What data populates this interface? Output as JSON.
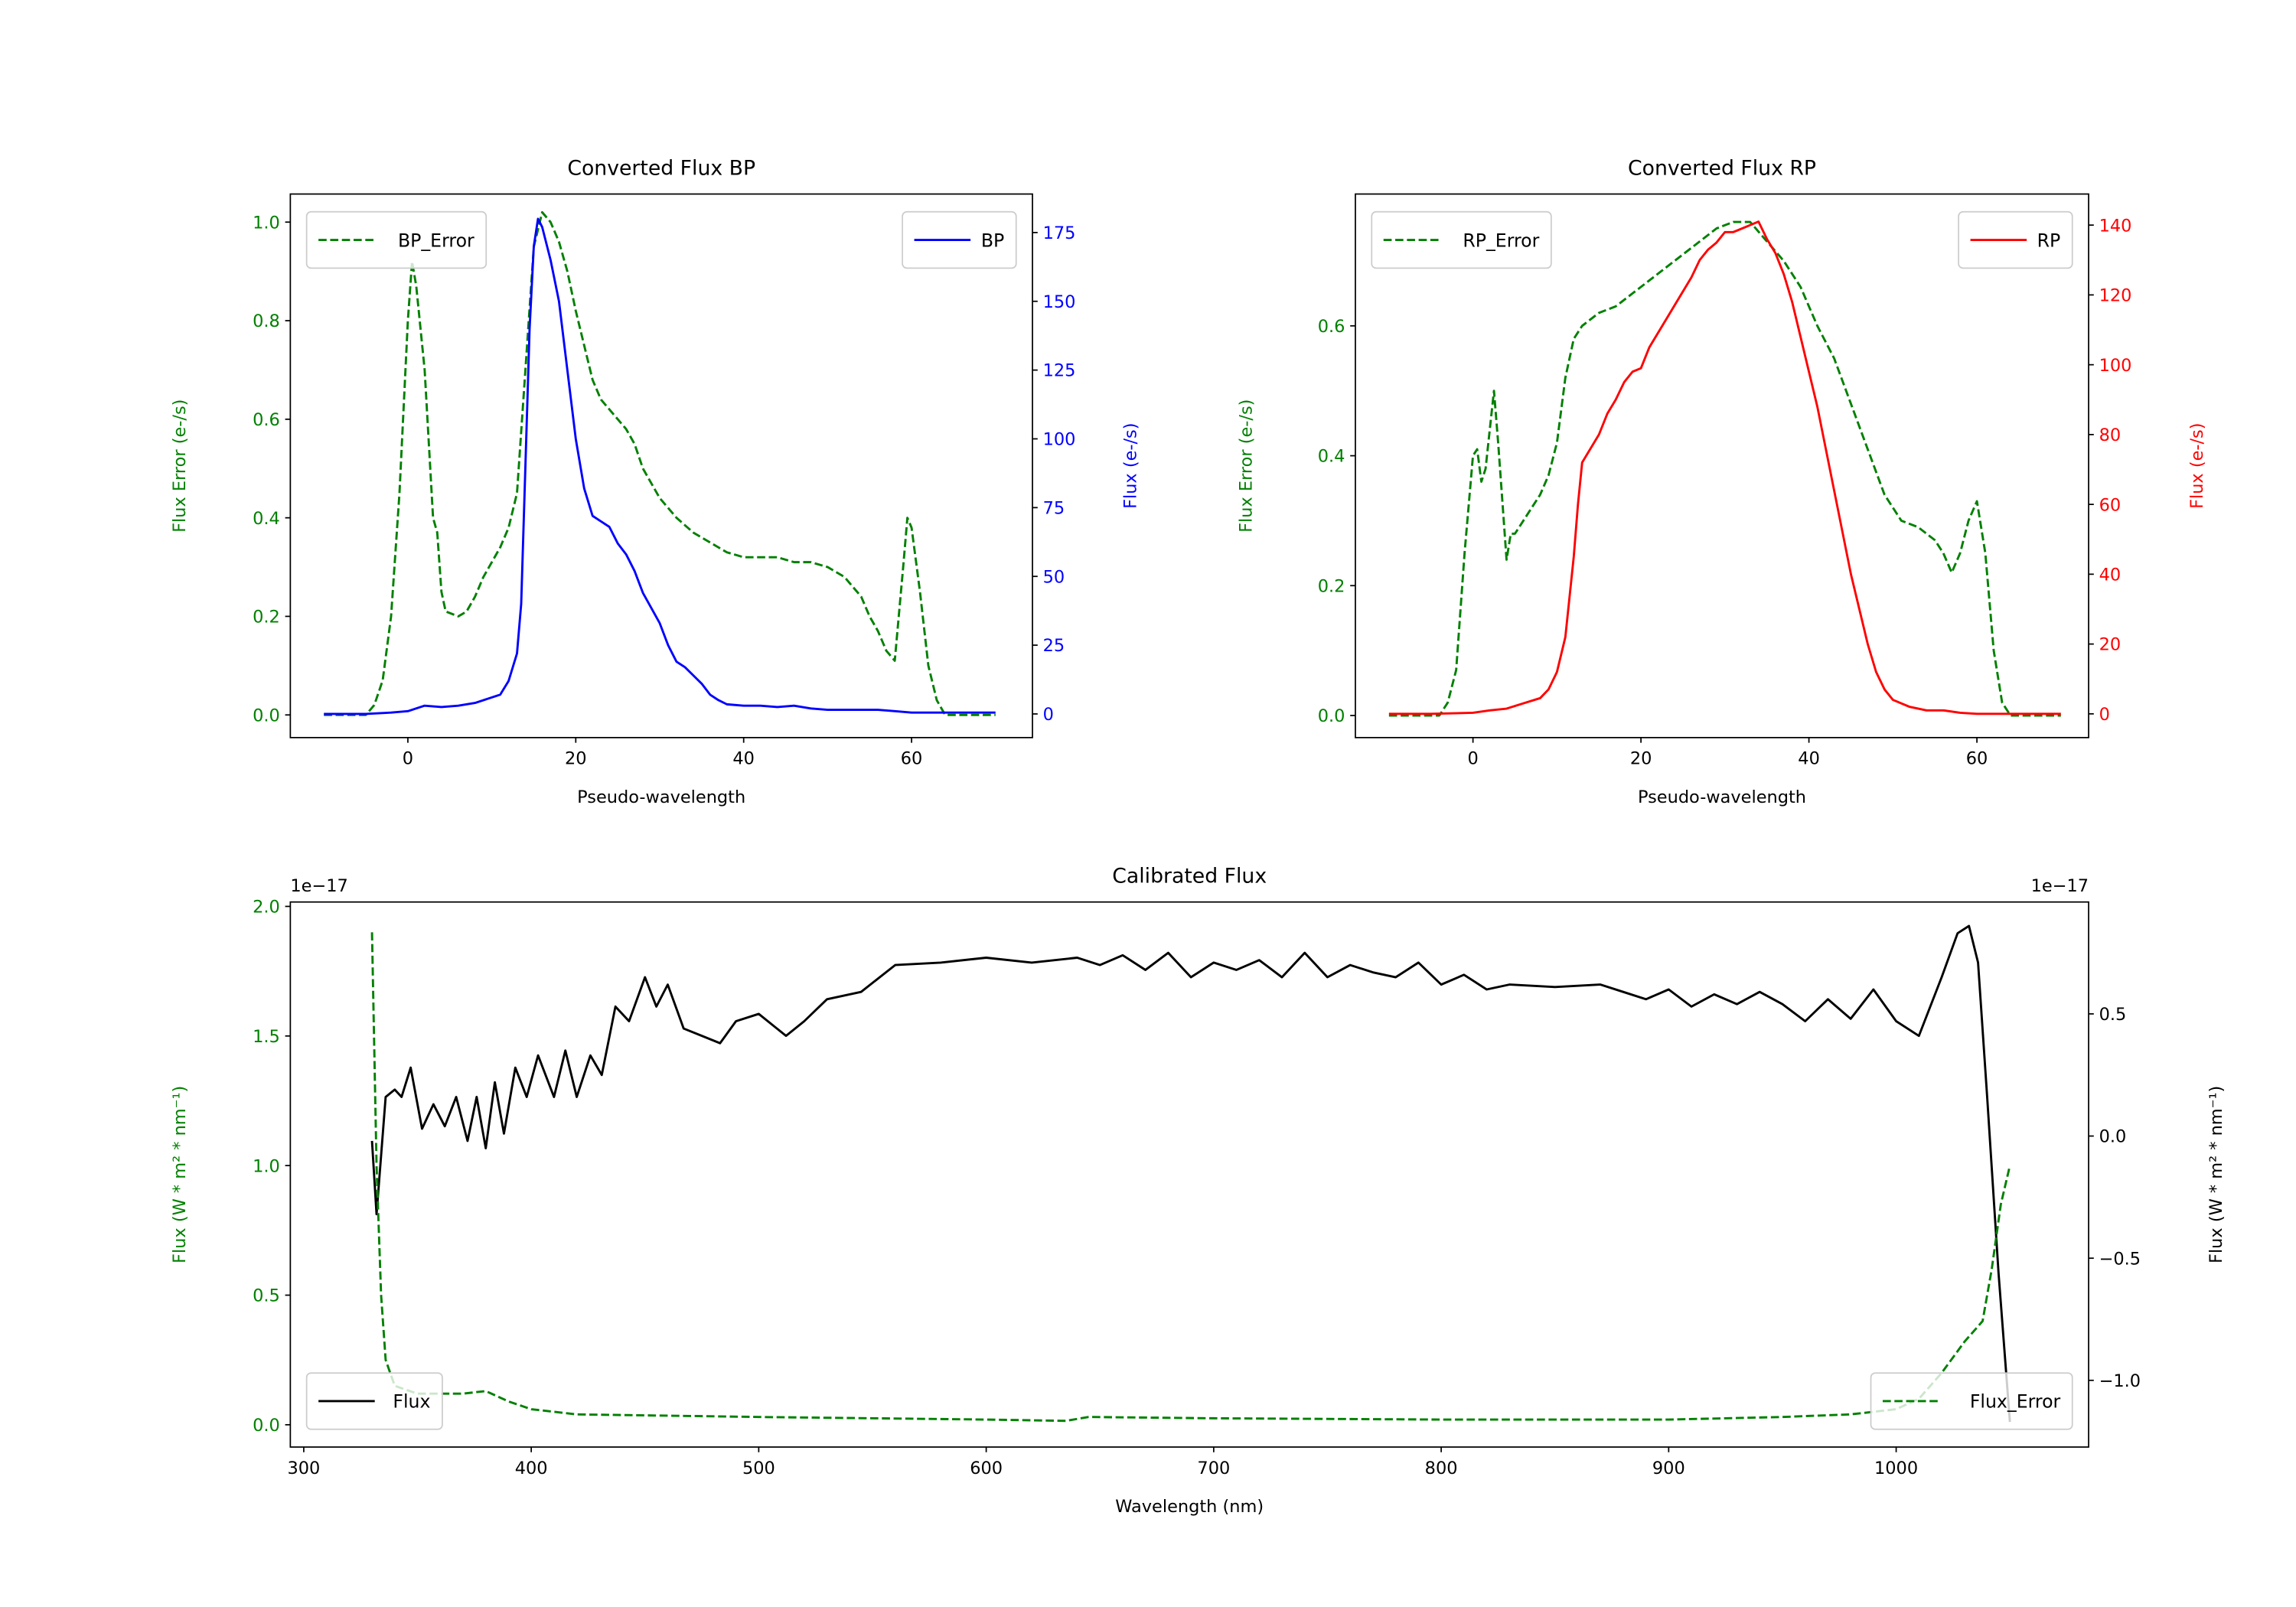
{
  "chart_data": [
    {
      "id": "bp",
      "type": "line",
      "title": "Converted Flux BP",
      "xlabel": "Pseudo-wavelength",
      "ylabel_left": "Flux Error (e-/s)",
      "ylabel_right": "Flux (e-/s)",
      "xlim": [
        -14,
        74.4
      ],
      "ylim_left": [
        -0.046,
        1.057
      ],
      "ylim_right": [
        -8.6,
        189
      ],
      "xticks": [
        {
          "v": 0,
          "label": "0"
        },
        {
          "v": 20,
          "label": "20"
        },
        {
          "v": 40,
          "label": "40"
        },
        {
          "v": 60,
          "label": "60"
        }
      ],
      "yticks_left": [
        {
          "v": 0,
          "label": "0.0"
        },
        {
          "v": 0.2,
          "label": "0.2"
        },
        {
          "v": 0.4,
          "label": "0.4"
        },
        {
          "v": 0.6,
          "label": "0.6"
        },
        {
          "v": 0.8,
          "label": "0.8"
        },
        {
          "v": 1.0,
          "label": "1.0"
        }
      ],
      "yticks_right": [
        {
          "v": 0,
          "label": "0"
        },
        {
          "v": 25,
          "label": "25"
        },
        {
          "v": 50,
          "label": "50"
        },
        {
          "v": 75,
          "label": "75"
        },
        {
          "v": 100,
          "label": "100"
        },
        {
          "v": 125,
          "label": "125"
        },
        {
          "v": 150,
          "label": "150"
        },
        {
          "v": 175,
          "label": "175"
        }
      ],
      "left_color": "#008000",
      "right_color": "#0000ff",
      "series": [
        {
          "name": "BP_Error",
          "axis": "left",
          "color": "#008000",
          "style": "dashed",
          "legend": "top-left",
          "x": [
            -10,
            -5,
            -4,
            -3,
            -2,
            -1,
            0,
            0.5,
            1,
            2,
            3,
            3.5,
            4,
            4.5,
            6,
            7,
            8,
            9,
            10,
            11,
            12,
            13,
            14,
            15,
            16,
            17,
            18,
            19,
            20,
            21,
            22,
            23,
            24,
            26,
            27,
            28,
            29,
            30,
            32,
            34,
            36,
            38,
            40,
            42,
            44,
            46,
            48,
            50,
            52,
            54,
            55,
            56,
            57,
            58,
            59,
            59.5,
            60,
            61,
            62,
            63,
            64,
            70
          ],
          "y": [
            0,
            0,
            0.02,
            0.07,
            0.2,
            0.45,
            0.8,
            0.92,
            0.87,
            0.7,
            0.4,
            0.37,
            0.25,
            0.21,
            0.2,
            0.21,
            0.24,
            0.28,
            0.31,
            0.34,
            0.38,
            0.45,
            0.7,
            0.95,
            1.02,
            1.0,
            0.96,
            0.9,
            0.82,
            0.75,
            0.68,
            0.64,
            0.62,
            0.58,
            0.55,
            0.5,
            0.47,
            0.44,
            0.4,
            0.37,
            0.35,
            0.33,
            0.32,
            0.32,
            0.32,
            0.31,
            0.31,
            0.3,
            0.28,
            0.24,
            0.2,
            0.17,
            0.13,
            0.11,
            0.3,
            0.4,
            0.38,
            0.25,
            0.1,
            0.03,
            0,
            0
          ]
        },
        {
          "name": "BP",
          "axis": "right",
          "color": "#0000ff",
          "style": "solid",
          "legend": "top-right",
          "x": [
            -10,
            -5,
            -2,
            0,
            2,
            4,
            6,
            8,
            10,
            11,
            12,
            13,
            13.5,
            14,
            14.5,
            15,
            15.5,
            16,
            17,
            18,
            19,
            20,
            21,
            22,
            23,
            24,
            25,
            26,
            27,
            28,
            30,
            31,
            32,
            33,
            34,
            35,
            36,
            37,
            38,
            40,
            42,
            44,
            46,
            48,
            50,
            52,
            54,
            56,
            58,
            60,
            62,
            65,
            70
          ],
          "y": [
            0,
            0,
            0.5,
            1,
            3,
            2.5,
            3,
            4,
            6,
            7,
            12,
            22,
            40,
            90,
            140,
            170,
            180,
            177,
            165,
            150,
            125,
            100,
            82,
            72,
            70,
            68,
            62,
            58,
            52,
            44,
            33,
            25,
            19,
            17,
            14,
            11,
            7,
            5,
            3.5,
            3,
            3,
            2.5,
            3,
            2,
            1.5,
            1.5,
            1.5,
            1.5,
            1,
            0.5,
            0.5,
            0.5,
            0.5
          ]
        }
      ]
    },
    {
      "id": "rp",
      "type": "line",
      "title": "Converted Flux RP",
      "xlabel": "Pseudo-wavelength",
      "ylabel_left": "Flux Error (e-/s)",
      "ylabel_right": "Flux (e-/s)",
      "xlim": [
        -14,
        73.3
      ],
      "ylim_left": [
        -0.034,
        0.803
      ],
      "ylim_right": [
        -6.8,
        148.9
      ],
      "xticks": [
        {
          "v": 0,
          "label": "0"
        },
        {
          "v": 20,
          "label": "20"
        },
        {
          "v": 40,
          "label": "40"
        },
        {
          "v": 60,
          "label": "60"
        }
      ],
      "yticks_left": [
        {
          "v": 0,
          "label": "0.0"
        },
        {
          "v": 0.2,
          "label": "0.2"
        },
        {
          "v": 0.4,
          "label": "0.4"
        },
        {
          "v": 0.6,
          "label": "0.6"
        }
      ],
      "yticks_right": [
        {
          "v": 0,
          "label": "0"
        },
        {
          "v": 20,
          "label": "20"
        },
        {
          "v": 40,
          "label": "40"
        },
        {
          "v": 60,
          "label": "60"
        },
        {
          "v": 80,
          "label": "80"
        },
        {
          "v": 100,
          "label": "100"
        },
        {
          "v": 120,
          "label": "120"
        },
        {
          "v": 140,
          "label": "140"
        }
      ],
      "left_color": "#008000",
      "right_color": "#ff0000",
      "series": [
        {
          "name": "RP_Error",
          "axis": "left",
          "color": "#008000",
          "style": "dashed",
          "legend": "top-left",
          "x": [
            -10,
            -4,
            -3,
            -2,
            -1,
            0,
            0.5,
            1,
            1.5,
            2,
            2.5,
            3,
            4,
            4.5,
            5,
            6,
            7,
            8,
            9,
            10,
            11,
            12,
            13,
            15,
            17,
            19,
            21,
            23,
            25,
            27,
            29,
            31,
            33,
            35,
            37,
            39,
            41,
            43,
            45,
            47,
            49,
            51,
            53,
            55,
            56,
            57,
            58,
            59,
            60,
            61,
            62,
            63,
            64,
            70
          ],
          "y": [
            0,
            0,
            0.02,
            0.07,
            0.25,
            0.4,
            0.41,
            0.36,
            0.38,
            0.44,
            0.5,
            0.42,
            0.24,
            0.28,
            0.28,
            0.3,
            0.32,
            0.34,
            0.37,
            0.42,
            0.52,
            0.58,
            0.6,
            0.62,
            0.63,
            0.65,
            0.67,
            0.69,
            0.71,
            0.73,
            0.75,
            0.76,
            0.76,
            0.73,
            0.7,
            0.66,
            0.6,
            0.55,
            0.48,
            0.41,
            0.34,
            0.3,
            0.29,
            0.27,
            0.25,
            0.22,
            0.25,
            0.3,
            0.33,
            0.25,
            0.1,
            0.02,
            0,
            0
          ]
        },
        {
          "name": "RP",
          "axis": "right",
          "color": "#ff0000",
          "style": "solid",
          "legend": "top-right",
          "x": [
            -10,
            -5,
            0,
            2,
            4,
            6,
            8,
            9,
            10,
            11,
            12,
            12.5,
            13,
            14,
            15,
            16,
            17,
            18,
            19,
            20,
            21,
            22,
            23,
            24,
            25,
            26,
            27,
            28,
            29,
            30,
            31,
            32,
            33,
            34,
            35,
            36,
            37,
            38,
            39,
            40,
            41,
            42,
            43,
            44,
            45,
            46,
            47,
            48,
            49,
            50,
            52,
            54,
            56,
            58,
            60,
            70
          ],
          "y": [
            0,
            0,
            0.3,
            1,
            1.5,
            3,
            4.5,
            7,
            12,
            22,
            45,
            60,
            72,
            76,
            80,
            86,
            90,
            95,
            98,
            99,
            105,
            109,
            113,
            117,
            121,
            125,
            130,
            133,
            135,
            138,
            138,
            139,
            140,
            141,
            136,
            132,
            126,
            118,
            108,
            98,
            88,
            76,
            64,
            52,
            40,
            30,
            20,
            12,
            7,
            4,
            2,
            1,
            1,
            0.3,
            0,
            0
          ]
        }
      ]
    },
    {
      "id": "cal",
      "type": "line",
      "title": "Calibrated Flux",
      "xlabel": "Wavelength (nm)",
      "ylabel_left": "Flux (W * m² * nm⁻¹)",
      "ylabel_right": "Flux (W * m² * nm⁻¹)",
      "offset_left": "1e−17",
      "offset_right": "1e−17",
      "xlim": [
        294.1,
        1084.6
      ],
      "ylim_left": [
        -0.086,
        2.017
      ],
      "ylim_right": [
        -1.273,
        0.958
      ],
      "xticks": [
        {
          "v": 300,
          "label": "300"
        },
        {
          "v": 400,
          "label": "400"
        },
        {
          "v": 500,
          "label": "500"
        },
        {
          "v": 600,
          "label": "600"
        },
        {
          "v": 700,
          "label": "700"
        },
        {
          "v": 800,
          "label": "800"
        },
        {
          "v": 900,
          "label": "900"
        },
        {
          "v": 1000,
          "label": "1000"
        }
      ],
      "yticks_left": [
        {
          "v": 0,
          "label": "0.0"
        },
        {
          "v": 0.5,
          "label": "0.5"
        },
        {
          "v": 1.0,
          "label": "1.0"
        },
        {
          "v": 1.5,
          "label": "1.5"
        },
        {
          "v": 2.0,
          "label": "2.0"
        }
      ],
      "yticks_right": [
        {
          "v": -1.0,
          "label": "−1.0"
        },
        {
          "v": -0.5,
          "label": "−0.5"
        },
        {
          "v": 0,
          "label": "0.0"
        },
        {
          "v": 0.5,
          "label": "0.5"
        }
      ],
      "left_color": "#008000",
      "right_color": "#000000",
      "series": [
        {
          "name": "Flux",
          "axis": "right",
          "color": "#000000",
          "style": "solid",
          "legend": "lower-left",
          "x": [
            330,
            332,
            336,
            340,
            343,
            347,
            352,
            357,
            362,
            367,
            372,
            376,
            380,
            384,
            388,
            393,
            398,
            403,
            410,
            415,
            420,
            426,
            431,
            437,
            443,
            450,
            455,
            460,
            467,
            475,
            483,
            490,
            500,
            512,
            520,
            530,
            545,
            560,
            580,
            600,
            620,
            640,
            650,
            660,
            670,
            680,
            690,
            700,
            710,
            720,
            730,
            740,
            750,
            760,
            770,
            780,
            790,
            800,
            810,
            820,
            830,
            850,
            870,
            880,
            890,
            900,
            910,
            920,
            930,
            940,
            950,
            960,
            970,
            980,
            990,
            1000,
            1010,
            1020,
            1027,
            1032,
            1036,
            1040,
            1045,
            1050
          ],
          "y": [
            -0.02,
            -0.32,
            0.16,
            0.19,
            0.16,
            0.28,
            0.03,
            0.13,
            0.04,
            0.16,
            -0.02,
            0.16,
            -0.05,
            0.22,
            0.01,
            0.28,
            0.16,
            0.33,
            0.16,
            0.35,
            0.16,
            0.33,
            0.25,
            0.53,
            0.47,
            0.65,
            0.53,
            0.62,
            0.44,
            0.41,
            0.38,
            0.47,
            0.5,
            0.41,
            0.47,
            0.56,
            0.59,
            0.7,
            0.71,
            0.73,
            0.71,
            0.73,
            0.7,
            0.74,
            0.68,
            0.75,
            0.65,
            0.71,
            0.68,
            0.72,
            0.65,
            0.75,
            0.65,
            0.7,
            0.67,
            0.65,
            0.71,
            0.62,
            0.66,
            0.6,
            0.62,
            0.61,
            0.62,
            0.59,
            0.56,
            0.6,
            0.53,
            0.58,
            0.54,
            0.59,
            0.54,
            0.47,
            0.56,
            0.48,
            0.6,
            0.47,
            0.41,
            0.65,
            0.83,
            0.86,
            0.71,
            0.16,
            -0.56,
            -1.17
          ]
        },
        {
          "name": "Flux_Error",
          "axis": "left",
          "color": "#008000",
          "style": "dashed",
          "legend": "lower-right",
          "x": [
            330,
            332,
            334,
            336,
            340,
            350,
            370,
            380,
            390,
            400,
            420,
            500,
            600,
            635,
            645,
            700,
            800,
            900,
            950,
            980,
            1000,
            1010,
            1020,
            1030,
            1038,
            1042,
            1046,
            1050
          ],
          "y": [
            1.9,
            1.0,
            0.5,
            0.25,
            0.15,
            0.12,
            0.12,
            0.13,
            0.09,
            0.06,
            0.04,
            0.03,
            0.02,
            0.015,
            0.03,
            0.025,
            0.02,
            0.02,
            0.03,
            0.04,
            0.06,
            0.1,
            0.2,
            0.32,
            0.4,
            0.6,
            0.85,
            1.0
          ]
        }
      ]
    }
  ]
}
